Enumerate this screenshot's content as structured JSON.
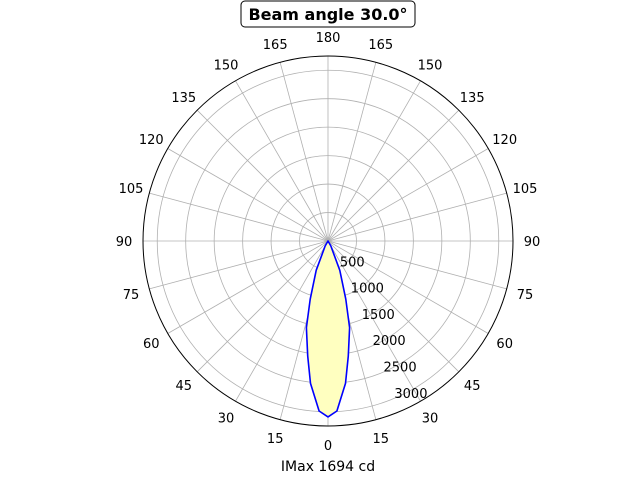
{
  "chart_data": {
    "type": "polar-line",
    "title": "Beam angle 30.0°",
    "xlabel": "IMax 1694 cd",
    "angle_ticks": [
      "0",
      "15",
      "30",
      "45",
      "60",
      "75",
      "90",
      "105",
      "120",
      "135",
      "150",
      "165",
      "180",
      "165",
      "150",
      "135",
      "120",
      "105",
      "90",
      "75",
      "60",
      "45",
      "30",
      "15"
    ],
    "radial_ticks": [
      500,
      1000,
      1500,
      2000,
      2500,
      3000
    ],
    "rlim": [
      0,
      3250
    ],
    "grid": true,
    "series": [
      {
        "angles_deg": [
          -35,
          -30,
          -22,
          -17,
          -14,
          -10,
          -7,
          -3,
          0,
          3,
          7,
          10,
          14,
          17,
          22,
          30,
          35
        ],
        "values": [
          0,
          100,
          555,
          1070,
          1570,
          2050,
          2520,
          2990,
          3090,
          2990,
          2520,
          2050,
          1570,
          1070,
          555,
          100,
          0
        ],
        "line_color": "#0000ff",
        "fill_color": "#ffffc0"
      }
    ]
  }
}
